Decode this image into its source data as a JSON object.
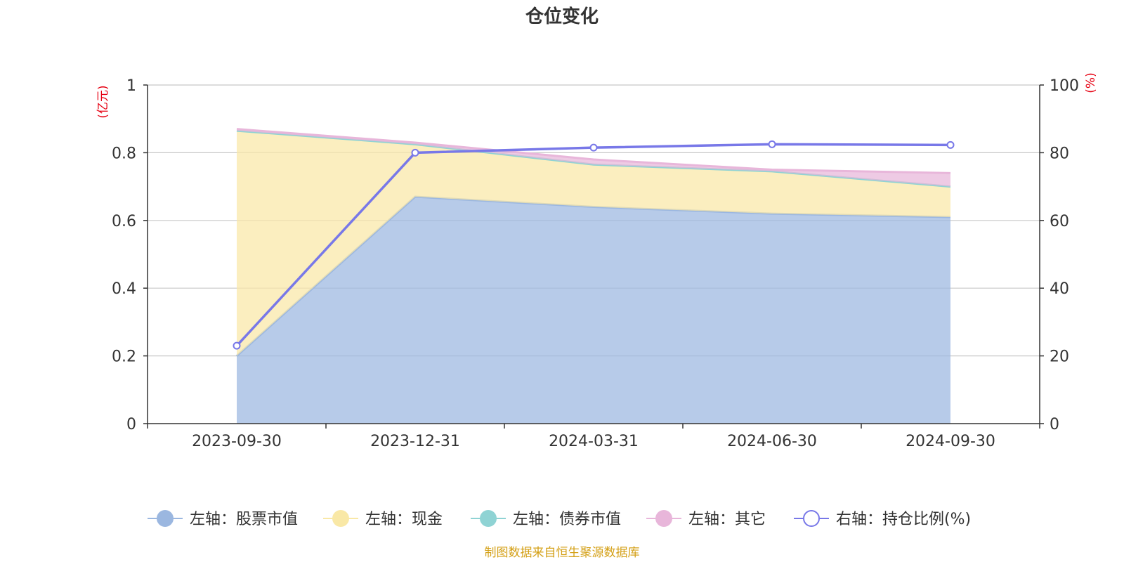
{
  "chart_data": {
    "type": "area",
    "title": "仓位变化",
    "left_unit": "(亿元)",
    "right_unit": "(%)",
    "categories": [
      "2023-09-30",
      "2023-12-31",
      "2024-03-31",
      "2024-06-30",
      "2024-09-30"
    ],
    "ylim_left": [
      0,
      1
    ],
    "yticks_left": [
      "0",
      "0.2",
      "0.4",
      "0.6",
      "0.8",
      "1"
    ],
    "ylim_right": [
      0,
      100
    ],
    "yticks_right": [
      "0",
      "20",
      "40",
      "60",
      "80",
      "100"
    ],
    "stacked": true,
    "grid": true,
    "series": [
      {
        "name": "左轴：股票市值",
        "axis": "left",
        "type": "area",
        "color": "#9bb7e0",
        "values": [
          0.2,
          0.67,
          0.64,
          0.62,
          0.61
        ]
      },
      {
        "name": "左轴：现金",
        "axis": "left",
        "type": "area",
        "color": "#f9e8a6",
        "values": [
          0.665,
          0.155,
          0.125,
          0.125,
          0.09
        ]
      },
      {
        "name": "左轴：债券市值",
        "axis": "left",
        "type": "area",
        "color": "#8fd3d4",
        "values": [
          0,
          0,
          0,
          0,
          0
        ]
      },
      {
        "name": "左轴：其它",
        "axis": "left",
        "type": "area",
        "color": "#e8b6da",
        "values": [
          0.005,
          0.005,
          0.015,
          0.005,
          0.04
        ]
      },
      {
        "name": "右轴：持仓比例(%)",
        "axis": "right",
        "type": "line",
        "color": "#7878e8",
        "values": [
          23,
          80,
          81.5,
          82.5,
          82.3
        ]
      }
    ],
    "legend_position": "bottom",
    "source_note": "制图数据来自恒生聚源数据库"
  }
}
